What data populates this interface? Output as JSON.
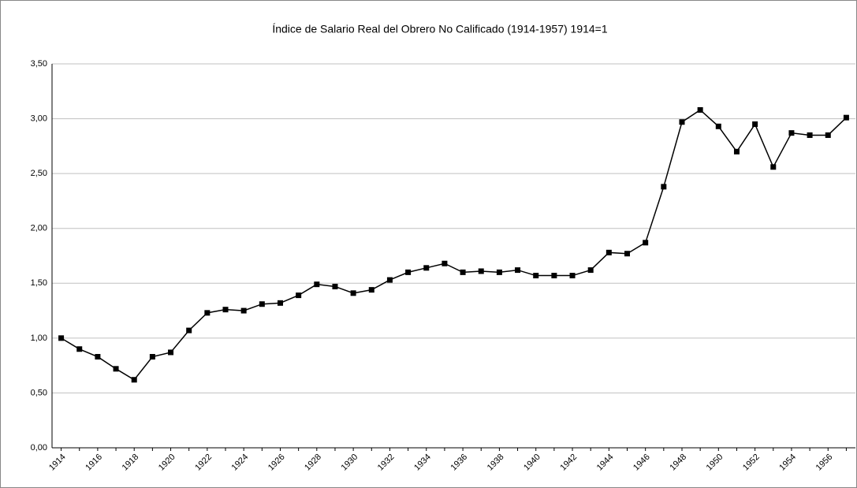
{
  "chart_data": {
    "type": "line",
    "title": "Índice de Salario Real del Obrero No Calificado (1914-1957) 1914=1",
    "categories": [
      "1914",
      null,
      "1916",
      null,
      "1918",
      null,
      "1920",
      null,
      "1922",
      null,
      "1924",
      null,
      "1926",
      null,
      "1928",
      null,
      "1930",
      null,
      "1932",
      null,
      "1934",
      null,
      "1936",
      null,
      "1938",
      null,
      "1940",
      null,
      "1942",
      null,
      "1944",
      null,
      "1946",
      null,
      "1948",
      null,
      "1950",
      null,
      "1952",
      null,
      "1954",
      null,
      "1956",
      null
    ],
    "values": [
      1.0,
      0.9,
      0.83,
      0.72,
      0.62,
      0.83,
      0.87,
      1.07,
      1.23,
      1.26,
      1.25,
      1.31,
      1.32,
      1.39,
      1.49,
      1.47,
      1.41,
      1.44,
      1.53,
      1.6,
      1.64,
      1.68,
      1.6,
      1.61,
      1.6,
      1.62,
      1.57,
      1.57,
      1.57,
      1.62,
      1.78,
      1.77,
      1.87,
      2.38,
      2.97,
      3.08,
      2.93,
      2.7,
      2.95,
      2.56,
      2.87,
      2.85,
      2.85,
      3.01
    ],
    "color": "#000000",
    "ylim": [
      0,
      3.5
    ],
    "yticks": [
      {
        "value": 0,
        "label": "0,00"
      },
      {
        "value": 0.5,
        "label": "0,50"
      },
      {
        "value": 1,
        "label": "1,00"
      },
      {
        "value": 1.5,
        "label": "1,50"
      },
      {
        "value": 2,
        "label": "2,00"
      },
      {
        "value": 2.5,
        "label": "2,50"
      },
      {
        "value": 3,
        "label": "3,00"
      },
      {
        "value": 3.5,
        "label": "3,50"
      }
    ],
    "grid": true
  }
}
